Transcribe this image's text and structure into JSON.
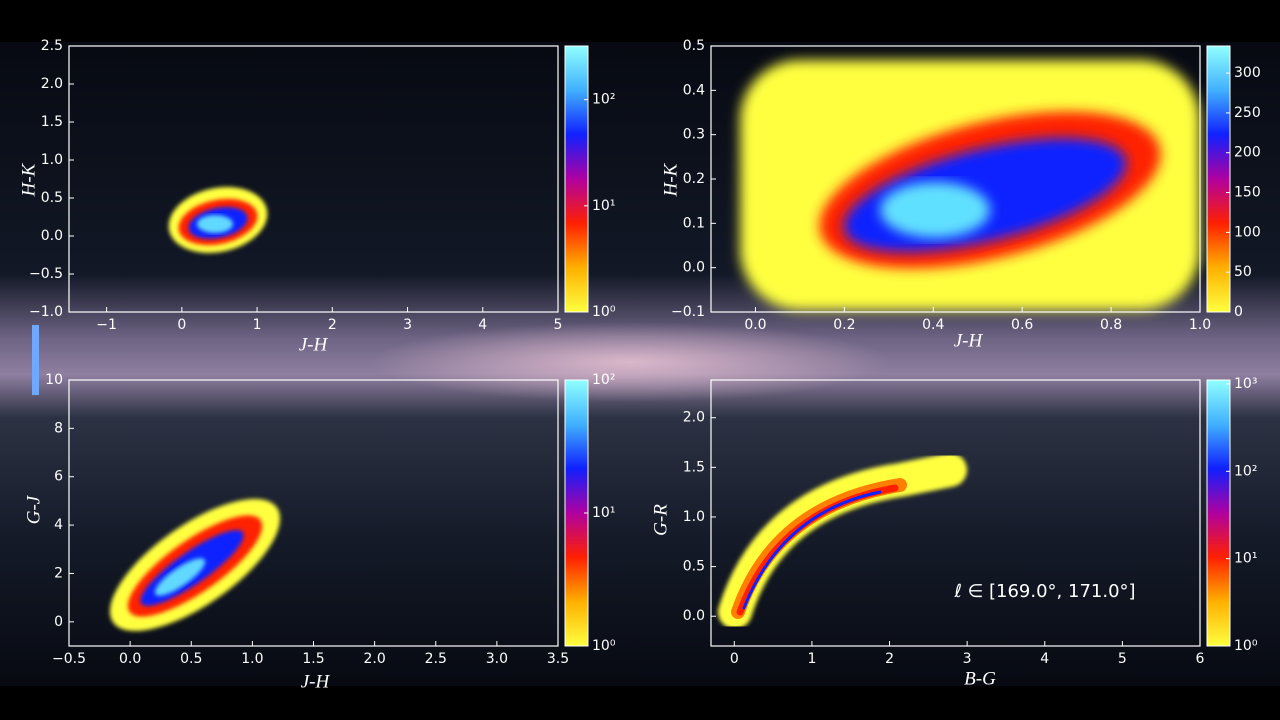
{
  "chart_data": [
    {
      "type": "hist2d",
      "xlabel": "J-H",
      "ylabel": "H-K",
      "xlim": [
        -1.5,
        5
      ],
      "ylim": [
        -1,
        2.5
      ],
      "xticks": [
        {
          "value": -1,
          "label": "−1"
        },
        0,
        1,
        2,
        3,
        4,
        5
      ],
      "yticks": [
        {
          "value": -1,
          "label": "−1.0"
        },
        {
          "value": -0.5,
          "label": "−0.5"
        },
        {
          "value": 0,
          "label": "0.0"
        },
        0.5,
        {
          "value": 1,
          "label": "1.0"
        },
        1.5,
        {
          "value": 2,
          "label": "2.0"
        },
        2.5
      ],
      "colorbar": {
        "scale": "log",
        "lim": [
          1,
          320
        ],
        "ticks": [
          {
            "value": 1,
            "label": "10⁰"
          },
          {
            "value": 10,
            "label": "10¹"
          },
          {
            "value": 100,
            "label": "10²"
          }
        ]
      }
    },
    {
      "type": "hist2d",
      "xlabel": "J-H",
      "ylabel": "H-K",
      "xlim": [
        -0.1,
        1
      ],
      "ylim": [
        -0.1,
        0.5
      ],
      "xticks": [
        {
          "value": 0,
          "label": "0.0"
        },
        0.2,
        0.4,
        0.6,
        0.8,
        {
          "value": 1,
          "label": "1.0"
        }
      ],
      "yticks": [
        {
          "value": -0.1,
          "label": "−0.1"
        },
        {
          "value": 0,
          "label": "0.0"
        },
        0.1,
        0.2,
        0.3,
        0.4,
        0.5
      ],
      "colorbar": {
        "scale": "linear",
        "lim": [
          0,
          334
        ],
        "ticks": [
          0,
          50,
          100,
          150,
          200,
          250,
          300
        ]
      }
    },
    {
      "type": "hist2d",
      "xlabel": "J-H",
      "ylabel": "G-J",
      "xlim": [
        -0.5,
        3.5
      ],
      "ylim": [
        -1,
        10
      ],
      "xticks": [
        {
          "value": -0.5,
          "label": "−0.5"
        },
        {
          "value": 0,
          "label": "0.0"
        },
        0.5,
        {
          "value": 1,
          "label": "1.0"
        },
        1.5,
        {
          "value": 2,
          "label": "2.0"
        },
        2.5,
        {
          "value": 3,
          "label": "3.0"
        },
        3.5
      ],
      "yticks": [
        0,
        2,
        4,
        6,
        8,
        10
      ],
      "colorbar": {
        "scale": "log",
        "lim": [
          1,
          100
        ],
        "ticks": [
          {
            "value": 1,
            "label": "10⁰"
          },
          {
            "value": 10,
            "label": "10¹"
          },
          {
            "value": 100,
            "label": "10²"
          }
        ]
      }
    },
    {
      "type": "hist2d",
      "xlabel": "B-G",
      "ylabel": "G-R",
      "annotation": "ℓ ∈ [169.0°, 171.0°]",
      "xlim": [
        -0.3,
        6
      ],
      "ylim": [
        -0.3,
        2.38
      ],
      "xticks": [
        0,
        1,
        2,
        3,
        4,
        5,
        6
      ],
      "yticks": [
        {
          "value": 0,
          "label": "0.0"
        },
        0.5,
        {
          "value": 1,
          "label": "1.0"
        },
        1.5,
        {
          "value": 2,
          "label": "2.0"
        }
      ],
      "colorbar": {
        "scale": "log",
        "lim": [
          1,
          1110
        ],
        "ticks": [
          {
            "value": 1,
            "label": "10⁰"
          },
          {
            "value": 10,
            "label": "10¹"
          },
          {
            "value": 100,
            "label": "10²"
          },
          {
            "value": 1000,
            "label": "10³"
          }
        ]
      }
    }
  ],
  "colormap": [
    "#ffff40",
    "#ffb000",
    "#ff2000",
    "#b000a0",
    "#1020ff",
    "#40b0ff",
    "#90ffff"
  ]
}
